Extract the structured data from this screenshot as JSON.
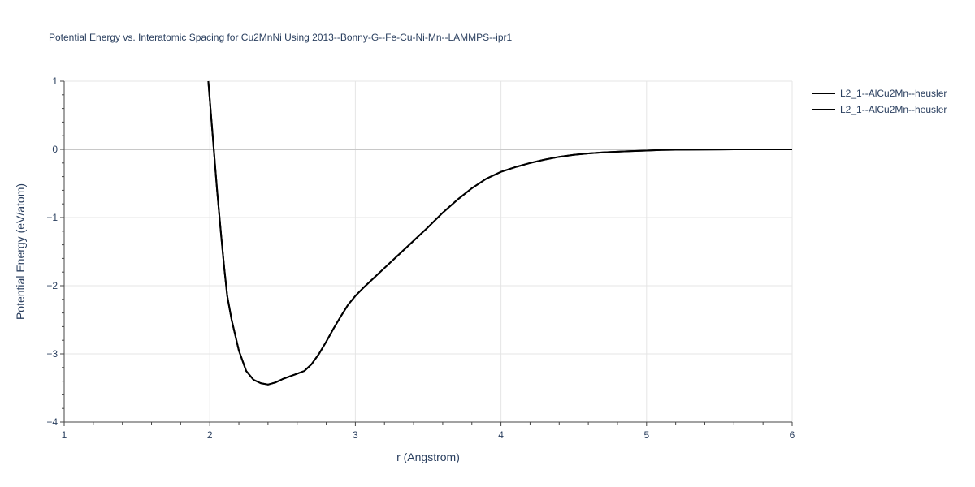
{
  "chart_data": {
    "type": "line",
    "title": "Potential Energy vs. Interatomic Spacing for Cu2MnNi Using 2013--Bonny-G--Fe-Cu-Ni-Mn--LAMMPS--ipr1",
    "xlabel": "r (Angstrom)",
    "ylabel": "Potential Energy (eV/atom)",
    "xlim": [
      1,
      6
    ],
    "ylim": [
      -4,
      1
    ],
    "x_ticks": [
      1,
      2,
      3,
      4,
      5,
      6
    ],
    "y_ticks": [
      1,
      0,
      -1,
      -2,
      -3,
      -4
    ],
    "x_tick_labels": [
      "1",
      "2",
      "3",
      "4",
      "5",
      "6"
    ],
    "y_tick_labels": [
      "1",
      "0",
      "−1",
      "−2",
      "−3",
      "−4"
    ],
    "grid": true,
    "legend_position": "top-right",
    "series": [
      {
        "name": "L2_1--AlCu2Mn--heusler",
        "color": "#000000",
        "x": [
          1.99,
          2.02,
          2.05,
          2.08,
          2.1,
          2.12,
          2.15,
          2.2,
          2.25,
          2.3,
          2.35,
          2.4,
          2.45,
          2.5,
          2.55,
          2.6,
          2.65,
          2.7,
          2.75,
          2.8,
          2.85,
          2.9,
          2.95,
          3.0,
          3.05,
          3.1,
          3.2,
          3.3,
          3.4,
          3.5,
          3.6,
          3.7,
          3.8,
          3.9,
          4.0,
          4.1,
          4.2,
          4.3,
          4.4,
          4.5,
          4.6,
          4.7,
          4.8,
          4.9,
          5.0,
          5.1,
          5.2,
          5.4,
          5.6,
          5.8,
          6.0
        ],
        "y": [
          1.0,
          0.2,
          -0.6,
          -1.3,
          -1.75,
          -2.15,
          -2.5,
          -2.95,
          -3.25,
          -3.38,
          -3.43,
          -3.45,
          -3.42,
          -3.37,
          -3.33,
          -3.29,
          -3.25,
          -3.15,
          -3.0,
          -2.82,
          -2.63,
          -2.45,
          -2.28,
          -2.15,
          -2.04,
          -1.94,
          -1.74,
          -1.54,
          -1.34,
          -1.14,
          -0.93,
          -0.74,
          -0.57,
          -0.43,
          -0.33,
          -0.26,
          -0.2,
          -0.15,
          -0.11,
          -0.08,
          -0.06,
          -0.045,
          -0.035,
          -0.025,
          -0.018,
          -0.01,
          -0.006,
          -0.002,
          0.0,
          0.0,
          0.0
        ]
      },
      {
        "name": "L2_1--AlCu2Mn--heusler",
        "color": "#000000",
        "x": [
          1.99,
          2.02,
          2.05,
          2.08,
          2.1,
          2.12,
          2.15,
          2.2,
          2.25,
          2.3,
          2.35,
          2.4,
          2.45,
          2.5,
          2.55,
          2.6,
          2.65,
          2.7,
          2.75,
          2.8,
          2.85,
          2.9,
          2.95,
          3.0,
          3.05,
          3.1,
          3.2,
          3.3,
          3.4,
          3.5,
          3.6,
          3.7,
          3.8,
          3.9,
          4.0,
          4.1,
          4.2,
          4.3,
          4.4,
          4.5,
          4.6,
          4.7,
          4.8,
          4.9,
          5.0,
          5.1,
          5.2,
          5.4,
          5.6,
          5.8,
          6.0
        ],
        "y": [
          1.0,
          0.2,
          -0.6,
          -1.3,
          -1.75,
          -2.15,
          -2.5,
          -2.95,
          -3.25,
          -3.38,
          -3.43,
          -3.45,
          -3.42,
          -3.37,
          -3.33,
          -3.29,
          -3.25,
          -3.15,
          -3.0,
          -2.82,
          -2.63,
          -2.45,
          -2.28,
          -2.15,
          -2.04,
          -1.94,
          -1.74,
          -1.54,
          -1.34,
          -1.14,
          -0.93,
          -0.74,
          -0.57,
          -0.43,
          -0.33,
          -0.26,
          -0.2,
          -0.15,
          -0.11,
          -0.08,
          -0.06,
          -0.045,
          -0.035,
          -0.025,
          -0.018,
          -0.01,
          -0.006,
          -0.002,
          0.0,
          0.0,
          0.0
        ]
      }
    ]
  }
}
